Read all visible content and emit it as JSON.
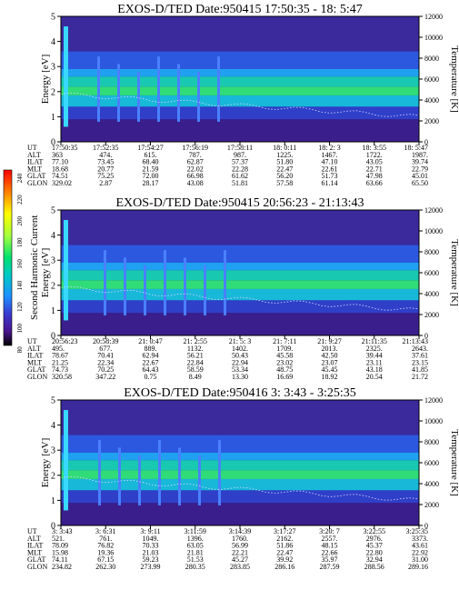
{
  "colorbar": {
    "label": "Second Harmonic Current",
    "ticks": [
      "240",
      "220",
      "200",
      "180",
      "160",
      "140",
      "120",
      "100",
      "80"
    ],
    "colors": [
      "#000000",
      "#7a0000",
      "#c40000",
      "#ff0000",
      "#ff7a00",
      "#ffd200",
      "#ffff66",
      "#b8ff66",
      "#3cff3c",
      "#00d46a",
      "#00c8b4",
      "#00a8ff",
      "#2e6cff",
      "#2f3ccc",
      "#3a1f8c",
      "#2a0a5c"
    ]
  },
  "chart_data": [
    {
      "type": "heatmap",
      "title": "EXOS-D/TED   Date:950415  17:50:35 - 18: 5:47",
      "ylabel": "Energy [eV]",
      "y2label": "Temperature [K]",
      "ylim": [
        0,
        5
      ],
      "y2lim": [
        0,
        12000
      ],
      "yticks": [
        "0",
        "1",
        "2",
        "3",
        "4",
        "5"
      ],
      "y2ticks": [
        "0",
        "2000",
        "4000",
        "6000",
        "8000",
        "10000",
        "12000"
      ],
      "row_labels": [
        "UT",
        "ALT",
        "ILAT",
        "MLT",
        "GLAT",
        "GLON"
      ],
      "columns": [
        [
          "17:50:35",
          "363",
          "77.10",
          "18.68",
          "74.51",
          "329.02"
        ],
        [
          "17:52:35",
          "474.",
          "73.45",
          "20.77",
          "75.25",
          "2.87"
        ],
        [
          "17:54:27",
          "615.",
          "68.40",
          "21.59",
          "72.00",
          "28.17"
        ],
        [
          "17:56:19",
          "787.",
          "62.87",
          "22.02",
          "66.98",
          "43.08"
        ],
        [
          "17:58:11",
          "987.",
          "57.37",
          "22.28",
          "61.62",
          "51.81"
        ],
        [
          "18: 0:11",
          "1225.",
          "51.80",
          "22.47",
          "56.20",
          "57.58"
        ],
        [
          "18: 2: 3",
          "1467.",
          "47.10",
          "22.61",
          "51.73",
          "61.14"
        ],
        [
          "18: 3:55",
          "1722.",
          "43.05",
          "22.71",
          "47.98",
          "63.66"
        ],
        [
          "18: 5:47",
          "1987.",
          "39.74",
          "22.79",
          "45.01",
          "65.50"
        ]
      ]
    },
    {
      "type": "heatmap",
      "title": "EXOS-D/TED   Date:950415  20:56:23 - 21:13:43",
      "ylabel": "Energy [eV]",
      "y2label": "Temperature [K]",
      "ylim": [
        0,
        5
      ],
      "y2lim": [
        0,
        12000
      ],
      "yticks": [
        "0",
        "1",
        "2",
        "3",
        "4",
        "5"
      ],
      "y2ticks": [
        "0",
        "2000",
        "4000",
        "6000",
        "8000",
        "10000",
        "12000"
      ],
      "row_labels": [
        "UT",
        "ALT",
        "ILAT",
        "MLT",
        "GLAT",
        "GLON"
      ],
      "columns": [
        [
          "20:56:23",
          "495.",
          "78.67",
          "21.25",
          "74.73",
          "320.58"
        ],
        [
          "20:58:39",
          "677.",
          "70.41",
          "22.34",
          "70.25",
          "347.22"
        ],
        [
          "21: 0:47",
          "889.",
          "62.94",
          "22.67",
          "64.43",
          "0.75"
        ],
        [
          "21: 2:55",
          "1132.",
          "56.21",
          "22.84",
          "58.59",
          "8.49"
        ],
        [
          "21: 5: 3",
          "1402.",
          "50.43",
          "22.94",
          "53.34",
          "13.30"
        ],
        [
          "21: 7:11",
          "1709.",
          "45.58",
          "23.02",
          "48.75",
          "16.69"
        ],
        [
          "21: 9:27",
          "2013.",
          "42.50",
          "23.07",
          "45.45",
          "18.92"
        ],
        [
          "21:11:35",
          "2325.",
          "39.44",
          "23.11",
          "43.18",
          "20.54"
        ],
        [
          "21:13:43",
          "2643.",
          "37.61",
          "23.15",
          "41.85",
          "21.72"
        ]
      ]
    },
    {
      "type": "heatmap",
      "title": "EXOS-D/TED   Date:950416  3: 3:43 - 3:25:35",
      "ylabel": "Energy [eV]",
      "y2label": "Temperature [K]",
      "ylim": [
        0,
        5
      ],
      "y2lim": [
        0,
        12000
      ],
      "yticks": [
        "0",
        "1",
        "2",
        "3",
        "4",
        "5"
      ],
      "y2ticks": [
        "0",
        "2000",
        "4000",
        "6000",
        "8000",
        "10000",
        "12000"
      ],
      "row_labels": [
        "UT",
        "ALT",
        "ILAT",
        "MLT",
        "GLAT",
        "GLON"
      ],
      "columns": [
        [
          "3: 3:43",
          "521.",
          "78.09",
          "15.98",
          "74.11",
          "234.82"
        ],
        [
          "3: 6:31",
          "761.",
          "76.82",
          "19.36",
          "67.15",
          "262.30"
        ],
        [
          "3: 9:11",
          "1049.",
          "70.33",
          "21.03",
          "59.23",
          "273.99"
        ],
        [
          "3:11:59",
          "1396.",
          "63.05",
          "21.81",
          "51.53",
          "280.35"
        ],
        [
          "3:14:39",
          "1760.",
          "56.99",
          "22.21",
          "45.27",
          "283.85"
        ],
        [
          "3:17:27",
          "2162.",
          "51.86",
          "22.47",
          "39.92",
          "286.16"
        ],
        [
          "3:20: 7",
          "2557.",
          "48.15",
          "22.66",
          "35.97",
          "287.59"
        ],
        [
          "3:22:55",
          "2976.",
          "45.37",
          "22.80",
          "32.94",
          "288.56"
        ],
        [
          "3:25:35",
          "3373.",
          "43.61",
          "22.92",
          "31.00",
          "289.16"
        ]
      ]
    }
  ]
}
